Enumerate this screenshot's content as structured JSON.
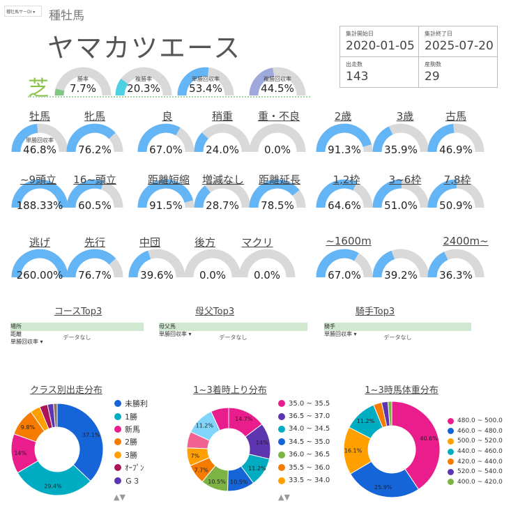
{
  "tab_label": "種牡馬サーDI ▾",
  "page_title": "種牡馬",
  "horse_name": "ヤマカツエース",
  "surface": "芝",
  "info": {
    "start_label": "集計開始日",
    "start_value": "2020-01-05",
    "end_label": "集計終了日",
    "end_value": "2025-07-20",
    "runs_label": "出走数",
    "runs_value": "143",
    "foals_label": "産駒数",
    "foals_value": "29"
  },
  "colors": {
    "green": "#81c784",
    "teal": "#4dd0e1",
    "blue": "#64b5f6",
    "purple": "#9fa8da",
    "track": "#d9d9d9"
  },
  "top_gauges": [
    {
      "label": "勝率",
      "value": "7.7%",
      "fraction": 0.077,
      "color": "#81c784"
    },
    {
      "label": "複勝率",
      "value": "20.3%",
      "fraction": 0.203,
      "color": "#4dd0e1"
    },
    {
      "label": "単勝回収率",
      "value": "53.4%",
      "fraction": 0.534,
      "color": "#64b5f6"
    },
    {
      "label": "複勝回収率",
      "value": "44.5%",
      "fraction": 0.445,
      "color": "#9fa8da"
    }
  ],
  "recovery_sub": "単勝回収率",
  "grid_rows": [
    [
      {
        "label": "牡馬",
        "value": "46.8%",
        "fraction": 0.468
      },
      {
        "label": "牝馬",
        "value": "76.2%",
        "fraction": 0.762
      },
      {
        "label": "良",
        "value": "67.0%",
        "fraction": 0.67
      },
      {
        "label": "稍重",
        "value": "24.0%",
        "fraction": 0.24
      },
      {
        "label": "重・不良",
        "value": "0.0%",
        "fraction": 0
      },
      {
        "label": "2歳",
        "value": "91.3%",
        "fraction": 0.913
      },
      {
        "label": "3歳",
        "value": "35.9%",
        "fraction": 0.359
      },
      {
        "label": "古馬",
        "value": "46.9%",
        "fraction": 0.469
      }
    ],
    [
      {
        "label": "~9頭立",
        "value": "188.33%",
        "fraction": 1
      },
      {
        "label": "16~頭立",
        "value": "60.5%",
        "fraction": 0.605
      },
      {
        "label": "距離短縮",
        "value": "91.5%",
        "fraction": 0.915
      },
      {
        "label": "増減なし",
        "value": "28.7%",
        "fraction": 0.287
      },
      {
        "label": "距離延長",
        "value": "78.5%",
        "fraction": 0.785
      },
      {
        "label": "1,2枠",
        "value": "64.6%",
        "fraction": 0.646
      },
      {
        "label": "3~6枠",
        "value": "51.0%",
        "fraction": 0.51
      },
      {
        "label": "7,8枠",
        "value": "50.9%",
        "fraction": 0.509
      }
    ],
    [
      {
        "label": "逃げ",
        "value": "260.00%",
        "fraction": 1
      },
      {
        "label": "先行",
        "value": "76.7%",
        "fraction": 0.767
      },
      {
        "label": "中団",
        "value": "39.6%",
        "fraction": 0.396
      },
      {
        "label": "後方",
        "value": "0.0%",
        "fraction": 0
      },
      {
        "label": "マクリ",
        "value": "0.0%",
        "fraction": 0
      },
      {
        "label": "~1600m",
        "value": "67.0%",
        "fraction": 0.67
      },
      {
        "label": "",
        "value": "39.2%",
        "fraction": 0.392
      },
      {
        "label": "2400m~",
        "value": "36.3%",
        "fraction": 0.363
      }
    ]
  ],
  "tables": [
    {
      "title": "コースTop3",
      "col1": "場所",
      "col2": "距離",
      "col3": "単勝回収率 ▾",
      "empty": "データなし"
    },
    {
      "title": "母父Top3",
      "col1": "母父馬",
      "col2": "",
      "col3": "単勝回収率 ▾",
      "empty": "データなし"
    },
    {
      "title": "騎手Top3",
      "col1": "騎手",
      "col2": "",
      "col3": "単勝回収率 ▾",
      "empty": "データなし"
    }
  ],
  "donuts": [
    {
      "title": "クラス別出走分布",
      "legend": [
        "未勝利",
        "1勝",
        "新馬",
        "2勝",
        "3勝",
        "ｵｰﾌﾟﾝ",
        "Ｇ３"
      ],
      "pager": "▲▼",
      "chart_data": {
        "type": "pie",
        "slices": [
          {
            "name": "未勝利",
            "value": 37.1,
            "color": "#1565d8",
            "label": "37.1%"
          },
          {
            "name": "1勝",
            "value": 29.4,
            "color": "#00acc1",
            "label": "29.4%"
          },
          {
            "name": "新馬",
            "value": 14,
            "color": "#e91e8c",
            "label": "14%"
          },
          {
            "name": "2勝",
            "value": 9.8,
            "color": "#f57c00",
            "label": "9.8%"
          },
          {
            "name": "3勝",
            "value": 3.5,
            "color": "#ffa000",
            "label": ""
          },
          {
            "name": "ｵｰﾌﾟﾝ",
            "value": 2.8,
            "color": "#ad1457",
            "label": ""
          },
          {
            "name": "Ｇ３",
            "value": 2.1,
            "color": "#5e35b1",
            "label": ""
          },
          {
            "name": "",
            "value": 1.3,
            "color": "#8d6e63",
            "label": ""
          }
        ]
      }
    },
    {
      "title": "1~3着時上り分布",
      "legend": [
        "35.0 ~ 35.5",
        "36.5 ~ 37.0",
        "34.0 ~ 34.5",
        "34.5 ~ 35.0",
        "36.0 ~ 36.5",
        "35.5 ~ 36.0",
        "33.5 ~ 34.0"
      ],
      "pager": "▲▼",
      "chart_data": {
        "type": "pie",
        "slices": [
          {
            "name": "35.0 ~ 35.5",
            "value": 14.7,
            "color": "#e91e8c",
            "label": "14.7%"
          },
          {
            "name": "36.5 ~ 37.0",
            "value": 14,
            "color": "#5e35b1",
            "label": "14%"
          },
          {
            "name": "34.0 ~ 34.5",
            "value": 11.2,
            "color": "#00acc1",
            "label": "11.2%"
          },
          {
            "name": "34.5 ~ 35.0",
            "value": 10.5,
            "color": "#1565d8",
            "label": "10.5%"
          },
          {
            "name": "36.0 ~ 36.5",
            "value": 10.5,
            "color": "#7cb342",
            "label": "10.5%"
          },
          {
            "name": "35.5 ~ 36.0",
            "value": 7.7,
            "color": "#f57c00",
            "label": "7.7%"
          },
          {
            "name": "33.5 ~ 34.0",
            "value": 7,
            "color": "#ffa000",
            "label": "7%"
          },
          {
            "name": "",
            "value": 6.3,
            "color": "#f06292",
            "label": ""
          },
          {
            "name": "",
            "value": 11.2,
            "color": "#81d4fa",
            "label": "11.2%"
          },
          {
            "name": "",
            "value": 6.9,
            "color": "#e91e8c",
            "label": ""
          }
        ]
      }
    },
    {
      "title": "1~3時馬体重分布",
      "legend": [
        "480.0 ~ 500.0",
        "460.0 ~ 480.0",
        "500.0 ~ 520.0",
        "440.0 ~ 460.0",
        "420.0 ~ 440.0",
        "520.0 ~ 540.0",
        "400.0 ~ 420.0"
      ],
      "pager": "",
      "chart_data": {
        "type": "pie",
        "slices": [
          {
            "name": "480.0 ~ 500.0",
            "value": 40.6,
            "color": "#e91e8c",
            "label": "40.6%"
          },
          {
            "name": "460.0 ~ 480.0",
            "value": 25.9,
            "color": "#1565d8",
            "label": "25.9%"
          },
          {
            "name": "500.0 ~ 520.0",
            "value": 16.1,
            "color": "#ffa000",
            "label": "16.1%"
          },
          {
            "name": "440.0 ~ 460.0",
            "value": 11.2,
            "color": "#00acc1",
            "label": "11.2%"
          },
          {
            "name": "420.0 ~ 440.0",
            "value": 2.8,
            "color": "#f57c00",
            "label": ""
          },
          {
            "name": "520.0 ~ 540.0",
            "value": 2.1,
            "color": "#5e35b1",
            "label": ""
          },
          {
            "name": "400.0 ~ 420.0",
            "value": 1.3,
            "color": "#7cb342",
            "label": ""
          }
        ]
      }
    }
  ]
}
